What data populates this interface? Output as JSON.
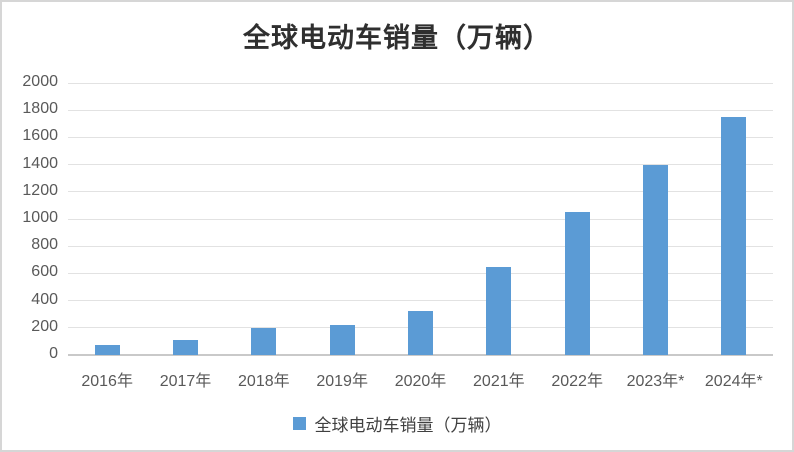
{
  "chart_data": {
    "type": "bar",
    "title": "全球电动车销量（万辆）",
    "series_name": "全球电动车销量（万辆）",
    "categories": [
      "2016年",
      "2017年",
      "2018年",
      "2019年",
      "2020年",
      "2021年",
      "2022年",
      "2023年*",
      "2024年*"
    ],
    "values": [
      70,
      110,
      200,
      220,
      320,
      650,
      1050,
      1400,
      1750
    ],
    "yticks": [
      0,
      200,
      400,
      600,
      800,
      1000,
      1200,
      1400,
      1600,
      1800,
      2000
    ],
    "ylim": [
      0,
      2000
    ],
    "xlabel": "",
    "ylabel": "",
    "grid": true,
    "legend_position": "bottom"
  },
  "legend": {
    "label": "全球电动车销量（万辆）"
  },
  "colors": {
    "bar": "#5b9bd5",
    "gridline": "#e2e2e2",
    "zero_line": "#c9c9c9",
    "tick_label": "#595959",
    "title": "#2f2f2f",
    "frame_border": "#d6d6d6"
  }
}
